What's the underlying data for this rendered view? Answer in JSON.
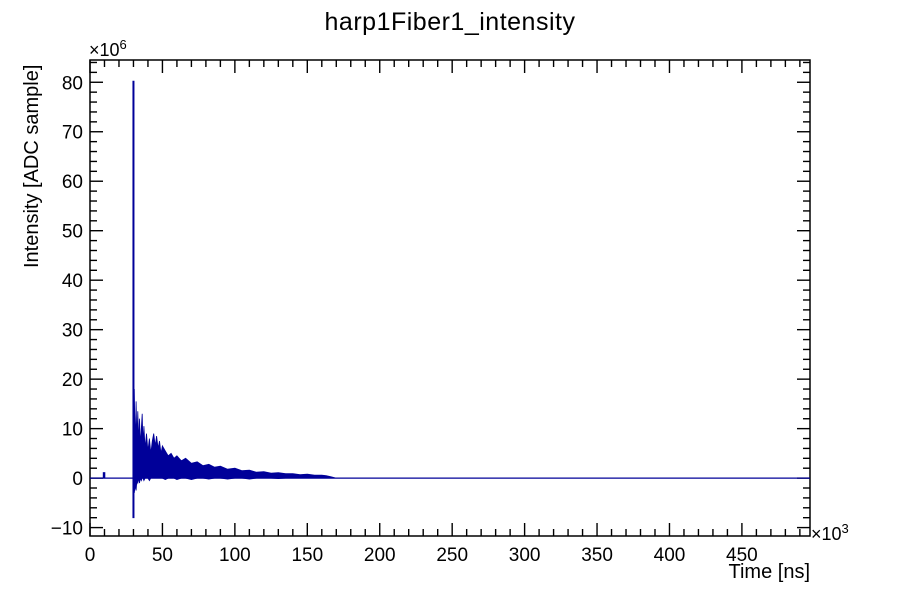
{
  "chart_data": {
    "type": "line",
    "title": "harp1Fiber1_intensity",
    "xlabel": "Time [ns]",
    "ylabel": "Intensity [ADC sample]",
    "x_exponent": {
      "base": "×10",
      "power": "3"
    },
    "y_exponent": {
      "base": "×10",
      "power": "6"
    },
    "xlim": [
      0,
      497
    ],
    "ylim": [
      -11.7,
      84.5
    ],
    "x_major_ticks": [
      0,
      50,
      100,
      150,
      200,
      250,
      300,
      350,
      400,
      450
    ],
    "x_tick_labels": [
      "0",
      "50",
      "100",
      "150",
      "200",
      "250",
      "300",
      "350",
      "400",
      "450"
    ],
    "x_minor_step": 10,
    "y_major_ticks": [
      -10,
      0,
      10,
      20,
      30,
      40,
      50,
      60,
      70,
      80
    ],
    "y_tick_labels": [
      "−10",
      "0",
      "10",
      "20",
      "30",
      "40",
      "50",
      "60",
      "70",
      "80"
    ],
    "y_minor_step": 2,
    "grid": false,
    "legend": "none",
    "line_color": "#000099",
    "frame_color": "#000000",
    "background_color": "#ffffff",
    "series": [
      {
        "name": "harp1Fiber1_intensity",
        "x_units": "1e3 ns",
        "y_units": "1e6 ADC sample",
        "baseline_y": 0,
        "pre_pulse_blip": {
          "x": 9.7,
          "y": 1.2
        },
        "main_pulse": {
          "x": 30,
          "y_max": 80.3,
          "y_min": -8.1
        },
        "decay_envelope": [
          [
            30.6,
            18,
            -3
          ],
          [
            31.2,
            6,
            -1.5
          ],
          [
            31.8,
            15.5,
            -2.5
          ],
          [
            32.4,
            8,
            -0.5
          ],
          [
            33,
            13.5,
            -1
          ],
          [
            33.6,
            7,
            0
          ],
          [
            34.2,
            12,
            -1
          ],
          [
            34.8,
            6.5,
            0
          ],
          [
            35.4,
            10,
            -0.5
          ],
          [
            36,
            13,
            0
          ],
          [
            36.6,
            7,
            0
          ],
          [
            37.2,
            10.5,
            -0.5
          ],
          [
            38,
            6,
            0
          ],
          [
            39,
            9,
            0
          ],
          [
            40,
            5.5,
            0
          ],
          [
            41,
            8,
            -0.5
          ],
          [
            42,
            5,
            0
          ],
          [
            43,
            7.5,
            0
          ],
          [
            44,
            9,
            0
          ],
          [
            45,
            6.5,
            0
          ],
          [
            46,
            8.5,
            0
          ],
          [
            47,
            6,
            0
          ],
          [
            48,
            7.5,
            0
          ],
          [
            49,
            5,
            0
          ],
          [
            50,
            6.5,
            0
          ],
          [
            52,
            5.5,
            -0.3
          ],
          [
            54,
            4.5,
            0
          ],
          [
            56,
            5,
            0
          ],
          [
            58,
            4,
            0
          ],
          [
            60,
            4.5,
            -0.3
          ],
          [
            63,
            3.5,
            0
          ],
          [
            66,
            4,
            0
          ],
          [
            70,
            3,
            -0.3
          ],
          [
            74,
            3.3,
            0
          ],
          [
            78,
            2.5,
            0
          ],
          [
            82,
            2.8,
            -0.2
          ],
          [
            86,
            2.2,
            0
          ],
          [
            90,
            2.4,
            0
          ],
          [
            95,
            1.8,
            -0.2
          ],
          [
            100,
            2,
            0
          ],
          [
            105,
            1.5,
            0
          ],
          [
            110,
            1.6,
            -0.2
          ],
          [
            115,
            1.2,
            0
          ],
          [
            120,
            1.3,
            0
          ],
          [
            125,
            1,
            0
          ],
          [
            130,
            1.1,
            -0.1
          ],
          [
            135,
            0.9,
            0
          ],
          [
            140,
            0.9,
            0
          ],
          [
            145,
            0.7,
            0
          ],
          [
            150,
            0.8,
            0
          ],
          [
            155,
            0.6,
            0
          ],
          [
            160,
            0.6,
            0
          ],
          [
            163,
            0.5,
            0
          ],
          [
            166,
            0.3,
            0
          ],
          [
            170,
            0,
            0
          ]
        ]
      }
    ]
  }
}
